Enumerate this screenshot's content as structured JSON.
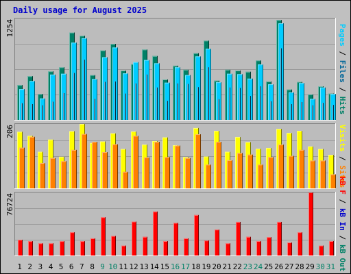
{
  "title": "Daily usage for August 2025",
  "colors": {
    "background": "#C0C0C0",
    "panel": "#BCBCBC",
    "title": "#0000CC",
    "pages": "#00CCFF",
    "files": "#006699",
    "hits": "#008066",
    "visits": "#FFFF00",
    "sites": "#FF8000",
    "kbout": "#008066",
    "kbin": "#0000CC",
    "kbf": "#FF0000",
    "weekday_label": "#000000",
    "weekend_label": "#008066"
  },
  "chart_data": {
    "type": "bar",
    "days": [
      "1",
      "2",
      "3",
      "4",
      "5",
      "6",
      "7",
      "8",
      "9",
      "10",
      "11",
      "12",
      "13",
      "14",
      "15",
      "16",
      "17",
      "18",
      "19",
      "20",
      "21",
      "22",
      "23",
      "24",
      "25",
      "26",
      "27",
      "28",
      "29",
      "30",
      "31"
    ],
    "weekend_days": [
      "9",
      "10",
      "16",
      "17",
      "23",
      "24",
      "30",
      "31"
    ],
    "panels": [
      {
        "id": "hits",
        "max_label": "1254",
        "ylim": [
          0,
          1254
        ],
        "legend": [
          {
            "text": "Pages",
            "color": "#00CCFF"
          },
          {
            "text": " / ",
            "color": "#000000"
          },
          {
            "text": "Files",
            "color": "#006699"
          },
          {
            "text": " / ",
            "color": "#000000"
          },
          {
            "text": "Hits",
            "color": "#008066"
          }
        ],
        "series": [
          {
            "name": "Hits",
            "color": "#008066",
            "values": [
              430,
              540,
              320,
              600,
              650,
              1080,
              1040,
              555,
              860,
              940,
              610,
              690,
              870,
              790,
              500,
              670,
              620,
              825,
              980,
              485,
              620,
              610,
              595,
              735,
              475,
              1235,
              375,
              470,
              315,
              415,
              325
            ]
          },
          {
            "name": "Pages",
            "color": "#00CCFF",
            "values": [
              380,
              480,
              265,
              560,
              570,
              955,
              1010,
              505,
              775,
              895,
              575,
              715,
              740,
              700,
              460,
              650,
              555,
              785,
              880,
              465,
              570,
              565,
              510,
              685,
              440,
              1195,
              340,
              455,
              260,
              400,
              320
            ]
          },
          {
            "name": "Files",
            "color": "#006699",
            "values": [
              205,
              195,
              180,
              225,
              330,
              580,
              745,
              260,
              470,
              475,
              325,
              450,
              560,
              400,
              235,
              450,
              445,
              405,
              650,
              255,
              400,
              395,
              295,
              415,
              230,
              885,
              195,
              220,
              180,
              210,
              185
            ]
          }
        ]
      },
      {
        "id": "visits",
        "max_label": "206",
        "ylim": [
          0,
          206
        ],
        "legend": [
          {
            "text": "Visits",
            "color": "#FFFF00"
          },
          {
            "text": " / ",
            "color": "#000000"
          },
          {
            "text": "Sites",
            "color": "#FF8000"
          }
        ],
        "series": [
          {
            "name": "Visits",
            "color": "#FFFF00",
            "values": [
              181,
              168,
              117,
              156,
              101,
              183,
              206,
              145,
              150,
              176,
              126,
              182,
              140,
              151,
              163,
              138,
              100,
              193,
              102,
              184,
              117,
              164,
              148,
              127,
              129,
              190,
              177,
              184,
              134,
              126,
              107
            ]
          },
          {
            "name": "Sites",
            "color": "#FF8000",
            "values": [
              130,
              165,
              81,
              97,
              87,
              123,
              174,
              149,
              116,
              141,
              53,
              168,
              99,
              149,
              100,
              137,
              97,
              173,
              76,
              149,
              90,
              113,
              108,
              76,
              100,
              140,
              104,
              123,
              89,
              89,
              45
            ]
          }
        ]
      },
      {
        "id": "kb",
        "max_label": "76724",
        "ylim": [
          0,
          76724
        ],
        "legend": [
          {
            "text": "kB F",
            "color": "#FF0000"
          },
          {
            "text": " / ",
            "color": "#000000"
          },
          {
            "text": "kB In",
            "color": "#0000CC"
          },
          {
            "text": " / ",
            "color": "#000000"
          },
          {
            "text": "kB Out",
            "color": "#008066"
          }
        ],
        "series": [
          {
            "name": "kB F",
            "color": "#FF0000",
            "values": [
              19200,
              17400,
              14800,
              14800,
              17400,
              28200,
              17400,
              20900,
              46500,
              23800,
              12100,
              41300,
              22700,
              53500,
              17500,
              39700,
              20900,
              49300,
              18200,
              31500,
              14800,
              40900,
              22700,
              17500,
              22300,
              40900,
              15800,
              28200,
              76724,
              12100,
              17500
            ]
          }
        ]
      }
    ]
  }
}
